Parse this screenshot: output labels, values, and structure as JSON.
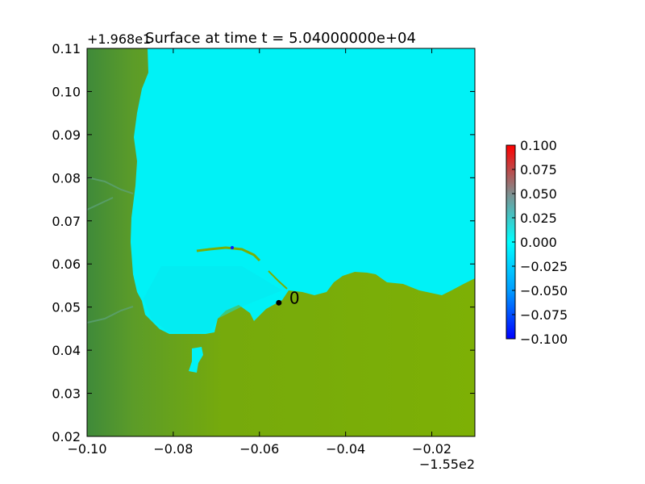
{
  "chart_data": {
    "type": "heatmap",
    "title": "Surface at time t = 5.04000000e+04",
    "xlim": [
      -155.1,
      -155.01
    ],
    "ylim": [
      19.7,
      19.79
    ],
    "x_offset_label": "−1.55e2",
    "y_offset_label": "+1.968e1",
    "x_tick_labels": [
      "−0.10",
      "−0.08",
      "−0.06",
      "−0.04",
      "−0.02"
    ],
    "y_tick_labels": [
      "0.02",
      "0.03",
      "0.04",
      "0.05",
      "0.06",
      "0.07",
      "0.08",
      "0.09",
      "0.10",
      "0.11"
    ],
    "colorbar": {
      "range": [
        -0.1,
        0.1
      ],
      "tick_labels": [
        "−0.100",
        "−0.075",
        "−0.050",
        "−0.025",
        "0.000",
        "0.025",
        "0.050",
        "0.075",
        "0.100"
      ],
      "colors": [
        "#0000ff",
        "#00aaff",
        "#00ffff",
        "#808080",
        "#ff0000"
      ]
    },
    "gauges": [
      {
        "label": "0",
        "x": -155.0555,
        "y": 19.731
      }
    ],
    "colors": {
      "water": "#00f2f6",
      "land_light": "#7aae06",
      "land_dark": "#3f8a3a"
    }
  }
}
